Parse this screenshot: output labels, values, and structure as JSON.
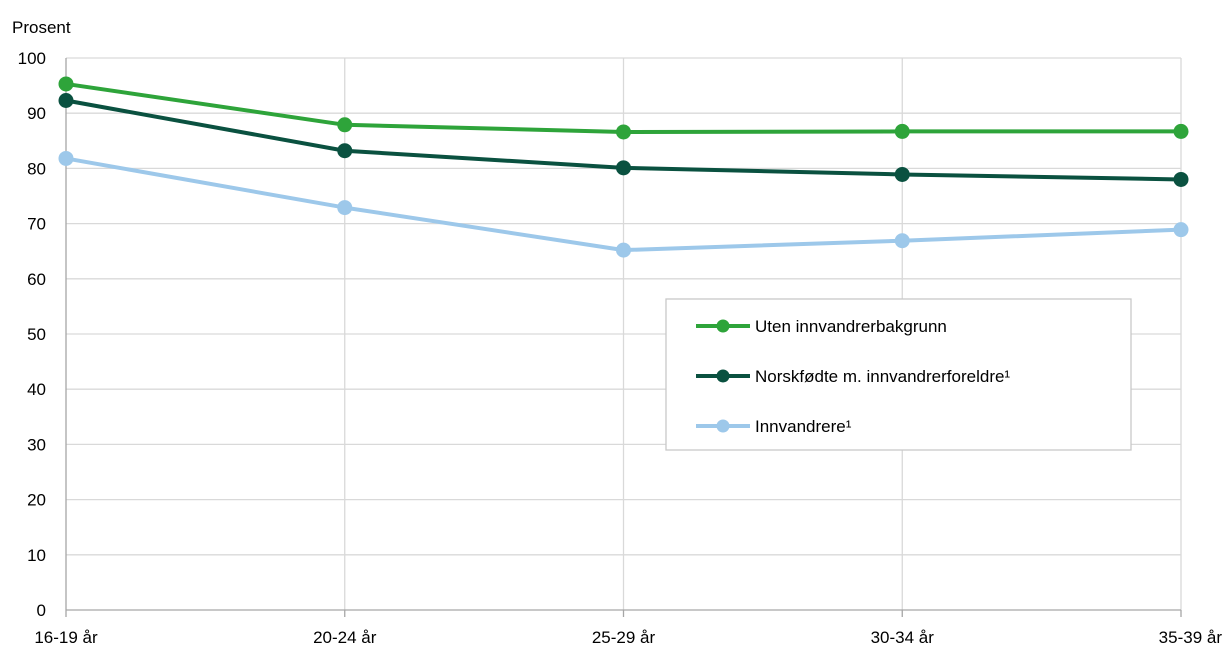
{
  "chart_data": {
    "type": "line",
    "ylabel": "Prosent",
    "xlabel": "",
    "title": "",
    "categories": [
      "16-19 år",
      "20-24 år",
      "25-29 år",
      "30-34 år",
      "35-39 år"
    ],
    "ylim": [
      0,
      100
    ],
    "yticks": [
      0,
      10,
      20,
      30,
      40,
      50,
      60,
      70,
      80,
      90,
      100
    ],
    "grid": true,
    "legend_position": "center-right",
    "series": [
      {
        "name": "Uten innvandrerbakgrunn",
        "color": "#2ea43a",
        "values": [
          95.3,
          87.9,
          86.6,
          86.7,
          86.7
        ]
      },
      {
        "name": "Norskfødte m. innvandrerforeldre¹",
        "color": "#0a5140",
        "values": [
          92.3,
          83.2,
          80.1,
          78.9,
          78.0
        ]
      },
      {
        "name": "Innvandrere¹",
        "color": "#9dc8ea",
        "values": [
          81.8,
          72.9,
          65.2,
          66.9,
          68.9
        ]
      }
    ],
    "colors": {
      "grid": "#d9d9d9",
      "axis": "#a6a6a6",
      "legend_border": "#c8c8c8"
    }
  }
}
